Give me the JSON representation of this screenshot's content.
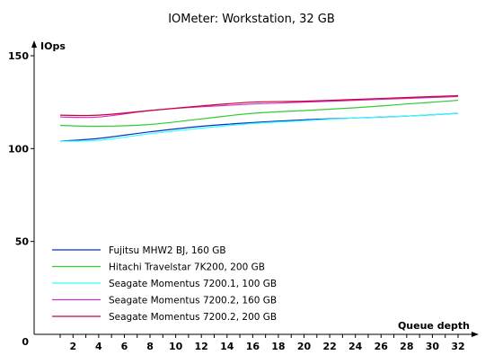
{
  "chart_data": {
    "type": "line",
    "title": "IOMeter: Workstation, 32 GB",
    "ylabel": "IOps",
    "xlabel": "Queue depth",
    "ylim": [
      0,
      150
    ],
    "yticks": [
      "0",
      "50",
      "100",
      "150"
    ],
    "xticks": [
      "2",
      "4",
      "6",
      "8",
      "10",
      "12",
      "14",
      "16",
      "18",
      "20",
      "22",
      "24",
      "26",
      "28",
      "30",
      "32"
    ],
    "x": [
      1,
      4,
      8,
      12,
      16,
      20,
      24,
      28,
      32
    ],
    "legend_position": "lower-left",
    "grid": false,
    "series": [
      {
        "name": "Fujitsu MHW2 BJ, 160 GB",
        "color": "#0033cc",
        "values": [
          104,
          105.5,
          109,
          112,
          114,
          115.5,
          116.5,
          117.5,
          119
        ]
      },
      {
        "name": "Hitachi Travelstar 7K200, 200 GB",
        "color": "#33cc33",
        "values": [
          112.5,
          112,
          113,
          116,
          119,
          120.5,
          122,
          124,
          126
        ]
      },
      {
        "name": "Seagate Momentus 7200.1, 100 GB",
        "color": "#33ffff",
        "values": [
          104,
          104.5,
          108,
          111,
          113.5,
          115,
          116.5,
          117.5,
          119
        ]
      },
      {
        "name": "Seagate Momentus 7200.2, 160 GB",
        "color": "#cc33cc",
        "values": [
          117,
          117,
          120.5,
          122.5,
          124,
          125,
          126,
          127,
          128
        ]
      },
      {
        "name": "Seagate Momentus 7200.2, 200 GB",
        "color": "#cc0033",
        "values": [
          118,
          118,
          120.5,
          123,
          125,
          125.5,
          126.5,
          127.5,
          128.5
        ]
      }
    ]
  }
}
